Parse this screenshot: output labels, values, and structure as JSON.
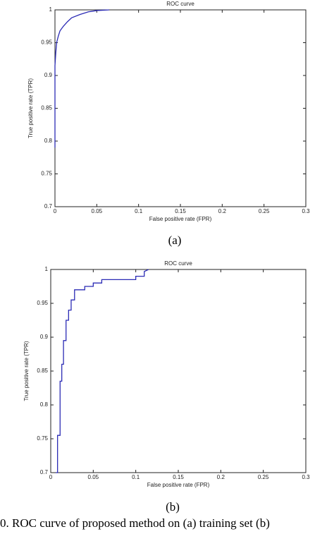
{
  "figure_caption": "0. ROC curve of proposed method on (a) training set (b)",
  "chart_data": [
    {
      "type": "line",
      "caption": "(a)",
      "title": "ROC curve",
      "x_label": "False positive rate (FPR)",
      "y_label": "True positive rate (TPR)",
      "xlim": [
        0,
        0.3
      ],
      "ylim": [
        0.7,
        1
      ],
      "xticks": [
        0,
        0.05,
        0.1,
        0.15,
        0.2,
        0.25,
        0.3
      ],
      "yticks": [
        0.7,
        0.75,
        0.8,
        0.85,
        0.9,
        0.95,
        1
      ],
      "grid": false,
      "series": [
        {
          "name": "ROC",
          "color": "#2b2bb5",
          "x": [
            0,
            0,
            0.001,
            0.002,
            0.004,
            0.006,
            0.01,
            0.015,
            0.02,
            0.03,
            0.04,
            0.05,
            0.065
          ],
          "values": [
            0.79,
            0.915,
            0.935,
            0.95,
            0.96,
            0.968,
            0.975,
            0.982,
            0.988,
            0.993,
            0.997,
            0.999,
            1
          ]
        }
      ]
    },
    {
      "type": "line",
      "caption": "(b)",
      "title": "ROC curve",
      "x_label": "False positive rate (FPR)",
      "y_label": "True positive rate (TPR)",
      "xlim": [
        0,
        0.3
      ],
      "ylim": [
        0.7,
        1
      ],
      "xticks": [
        0,
        0.05,
        0.1,
        0.15,
        0.2,
        0.25,
        0.3
      ],
      "yticks": [
        0.7,
        0.75,
        0.8,
        0.85,
        0.9,
        0.95,
        1
      ],
      "grid": false,
      "series": [
        {
          "name": "ROC",
          "color": "#2b2bb5",
          "x": [
            0.006,
            0.008,
            0.008,
            0.011,
            0.011,
            0.013,
            0.013,
            0.015,
            0.015,
            0.018,
            0.018,
            0.021,
            0.021,
            0.024,
            0.024,
            0.028,
            0.028,
            0.04,
            0.04,
            0.05,
            0.05,
            0.06,
            0.06,
            0.1,
            0.1,
            0.11,
            0.11,
            0.115
          ],
          "values": [
            0.7,
            0.7,
            0.755,
            0.755,
            0.835,
            0.835,
            0.86,
            0.86,
            0.895,
            0.895,
            0.925,
            0.925,
            0.94,
            0.94,
            0.955,
            0.955,
            0.97,
            0.97,
            0.975,
            0.975,
            0.98,
            0.98,
            0.985,
            0.985,
            0.99,
            0.99,
            0.997,
            1
          ]
        }
      ]
    }
  ]
}
